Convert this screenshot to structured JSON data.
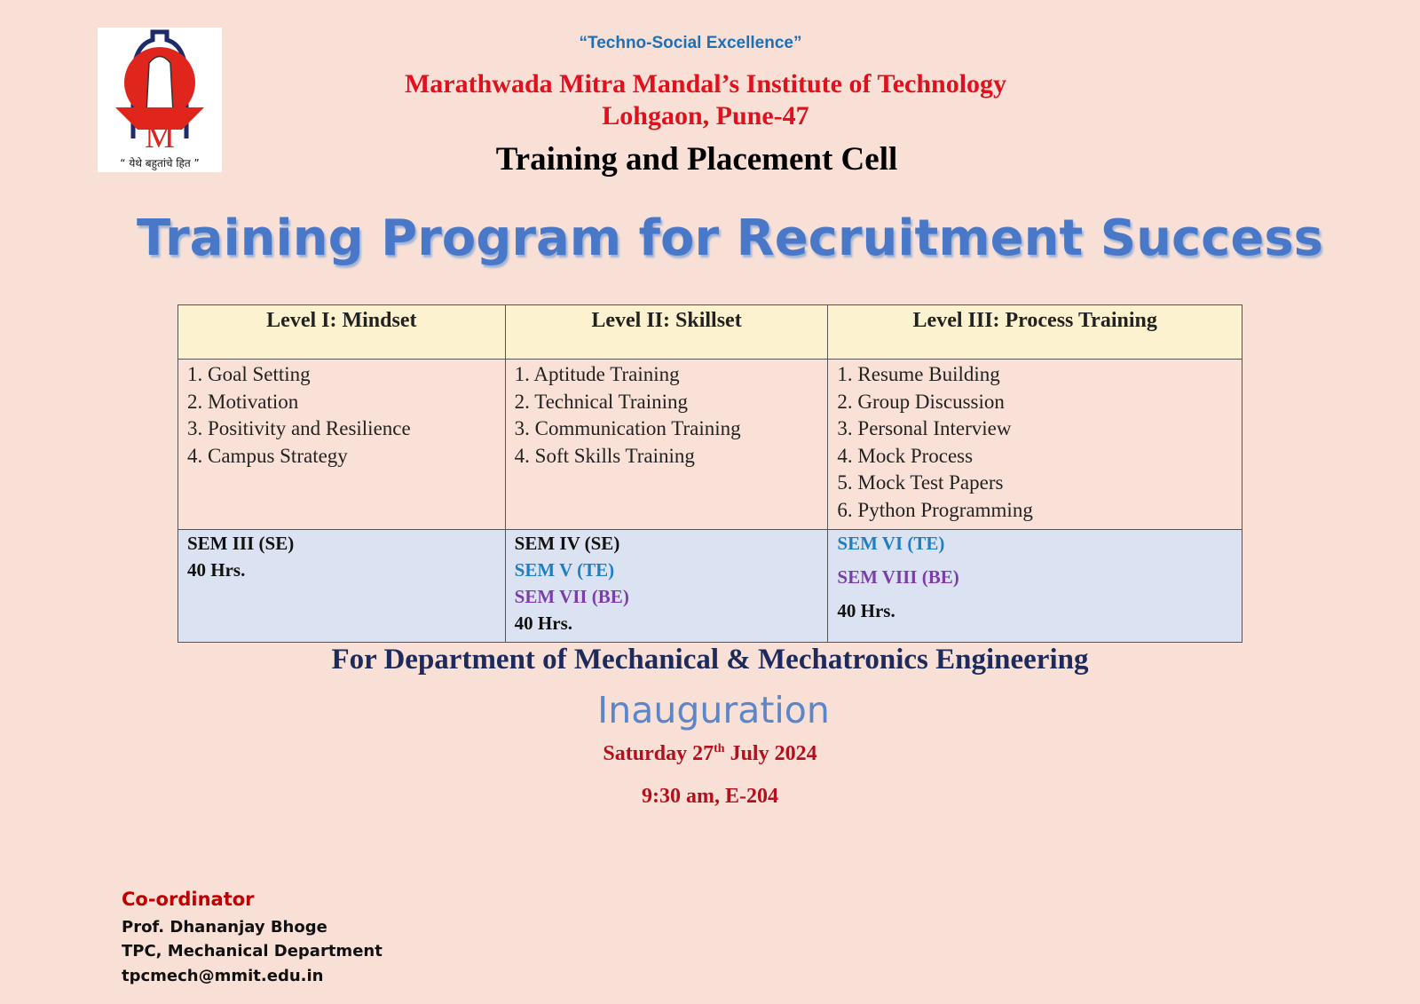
{
  "header": {
    "tagline": "“Techno-Social Excellence”",
    "institute": "Marathwada Mitra Mandal’s  Institute of Technology",
    "location": "Lohgaon, Pune-47",
    "cell": "Training and Placement Cell",
    "logo_text": "“ येथे बहुतांचे हित ”"
  },
  "title": "Training Program for Recruitment Success",
  "table": {
    "headers": [
      "Level I: Mindset",
      "Level II: Skillset",
      "Level III: Process Training"
    ],
    "items": [
      [
        "1. Goal Setting",
        "2. Motivation",
        "3. Positivity and Resilience",
        "4. Campus Strategy"
      ],
      [
        "1. Aptitude Training",
        "2. Technical Training",
        "3. Communication Training",
        "4. Soft Skills Training"
      ],
      [
        "1. Resume Building",
        "2. Group Discussion",
        "3. Personal Interview",
        "4. Mock Process",
        "5. Mock Test Papers",
        "6. Python Programming"
      ]
    ],
    "sems": [
      [
        "SEM III (SE)",
        "40 Hrs."
      ],
      [
        "SEM IV (SE)",
        "SEM V (TE)",
        "SEM VII (BE)",
        "40 Hrs."
      ],
      [
        "SEM VI (TE)",
        "SEM VIII (BE)",
        "40 Hrs."
      ]
    ]
  },
  "department": "For Department of Mechanical & Mechatronics Engineering",
  "inauguration": {
    "label": "Inauguration",
    "day": "Saturday 27",
    "sup": "th",
    "rest": " July 2024",
    "time": "9:30 am, E-204"
  },
  "coordinator": {
    "title": "Co-ordinator",
    "name": "Prof. Dhananjay Bhoge",
    "role": "TPC, Mechanical Department",
    "email": "tpcmech@mmit.edu.in"
  },
  "colors": {
    "background": "#f9e0d6",
    "red": "#e0101c",
    "blue": "#4a78c8",
    "sem_te": "#1f7ec1",
    "sem_be": "#7a3ea8"
  }
}
